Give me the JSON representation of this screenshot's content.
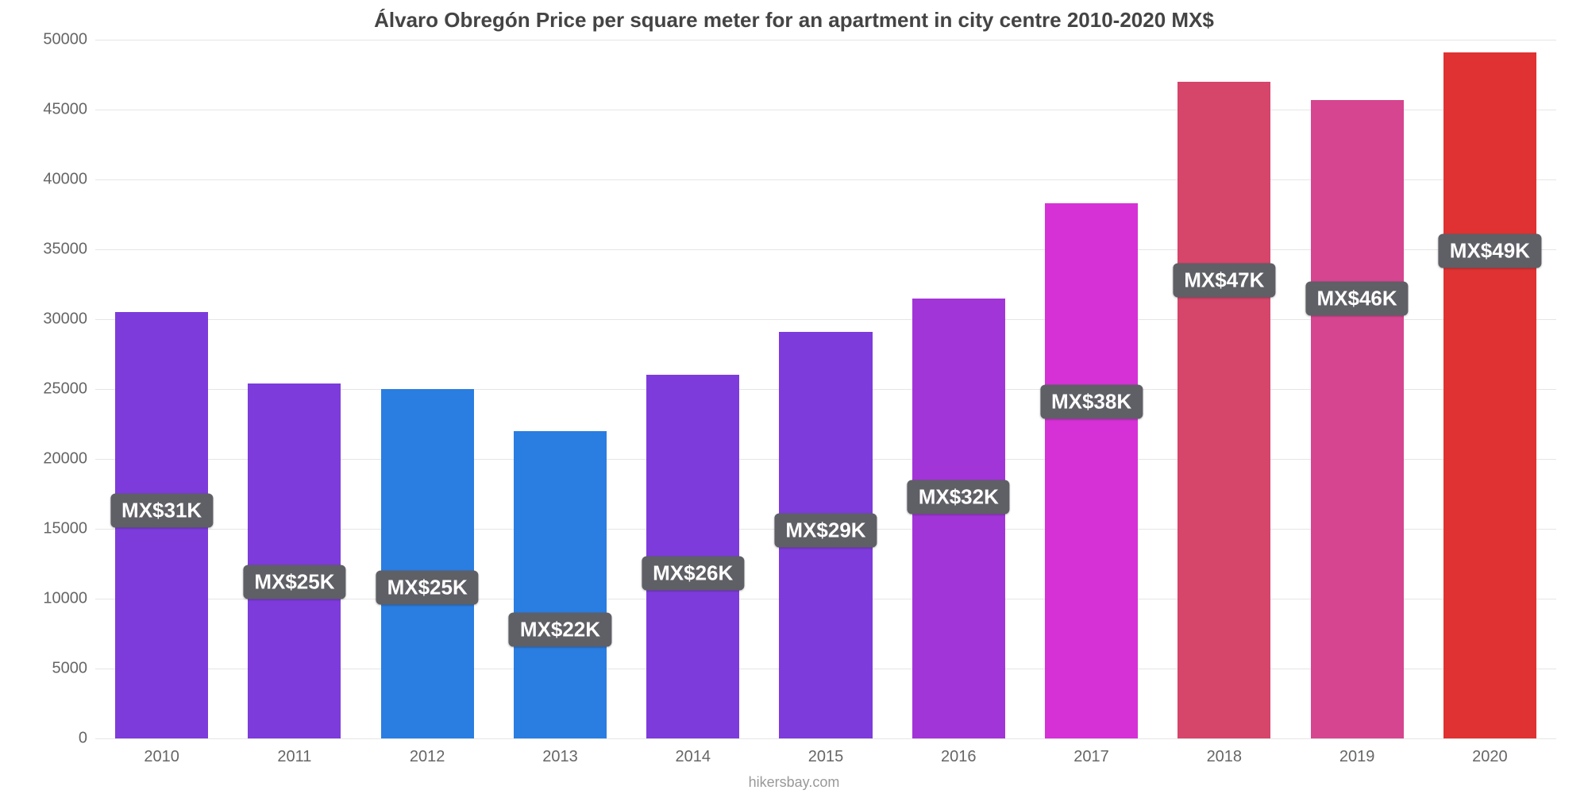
{
  "chart": {
    "type": "bar",
    "title": "Álvaro Obregón Price per square meter for an apartment in city centre 2010-2020 MX$",
    "title_fontsize": 26,
    "source": "hikersbay.com",
    "source_fontsize": 18,
    "background_color": "#ffffff",
    "grid_color": "#e6e6e6",
    "axis_label_color": "#666666",
    "axis_label_fontsize": 20,
    "ylim": [
      0,
      50000
    ],
    "yticks": [
      0,
      5000,
      10000,
      15000,
      20000,
      25000,
      30000,
      35000,
      40000,
      45000,
      50000
    ],
    "categories": [
      "2010",
      "2011",
      "2012",
      "2013",
      "2014",
      "2015",
      "2016",
      "2017",
      "2018",
      "2019",
      "2020"
    ],
    "values": [
      30500,
      25400,
      25000,
      22000,
      26000,
      29100,
      31500,
      38300,
      47000,
      45700,
      49100
    ],
    "value_labels": [
      "MX$31K",
      "MX$25K",
      "MX$25K",
      "MX$22K",
      "MX$26K",
      "MX$29K",
      "MX$32K",
      "MX$38K",
      "MX$47K",
      "MX$46K",
      "MX$49K"
    ],
    "bar_colors": [
      "#7d3bdc",
      "#7d3bdc",
      "#2a7de1",
      "#2a7de1",
      "#7d3bdc",
      "#7d3bdc",
      "#a235d8",
      "#d631d6",
      "#d6456a",
      "#d6458f",
      "#e03232"
    ],
    "bar_width_ratio": 0.7,
    "label_box_bg": "#5f5f66",
    "label_box_text_color": "#ffffff",
    "label_box_fontsize": 26,
    "label_vertical_offset": 250
  }
}
